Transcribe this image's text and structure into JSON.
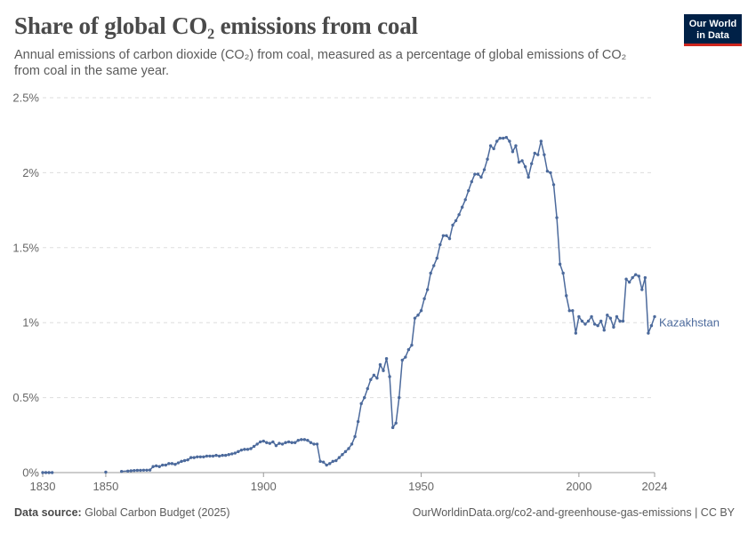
{
  "header": {
    "title": "Share of global CO₂ emissions from coal",
    "subtitle": "Annual emissions of carbon dioxide (CO₂) from coal, measured as a percentage of global emissions of CO₂ from coal in the same year."
  },
  "logo": {
    "line1": "Our World",
    "line2": "in Data",
    "bg_color": "#002147",
    "accent_color": "#ce261e"
  },
  "footer": {
    "source_label": "Data source:",
    "source_value": "Global Carbon Budget (2025)",
    "url": "OurWorldinData.org/co2-and-greenhouse-gas-emissions | CC BY"
  },
  "chart_data": {
    "type": "line",
    "title": "Share of global CO₂ emissions from coal",
    "xlabel": "",
    "ylabel": "",
    "xlim": [
      1830,
      2024
    ],
    "ylim": [
      0,
      2.5
    ],
    "x_ticks": [
      1830,
      1850,
      1900,
      1950,
      2000,
      2024
    ],
    "y_ticks": [
      {
        "value": 0,
        "label": "0%"
      },
      {
        "value": 0.5,
        "label": "0.5%"
      },
      {
        "value": 1,
        "label": "1%"
      },
      {
        "value": 1.5,
        "label": "1.5%"
      },
      {
        "value": 2,
        "label": "2%"
      },
      {
        "value": 2.5,
        "label": "2.5%"
      }
    ],
    "grid": "horizontal dashed",
    "legend": "inline label at line end",
    "line_color": "#4c6a9c",
    "series": [
      {
        "name": "Kazakhstan",
        "points": [
          [
            1830,
            0.0
          ],
          [
            1831,
            0.0
          ],
          [
            1832,
            0.0
          ],
          [
            1833,
            0.0
          ],
          [
            1850,
            0.003
          ],
          [
            1855,
            0.008
          ],
          [
            1857,
            0.01
          ],
          [
            1858,
            0.012
          ],
          [
            1859,
            0.014
          ],
          [
            1860,
            0.015
          ],
          [
            1861,
            0.015
          ],
          [
            1862,
            0.016
          ],
          [
            1863,
            0.016
          ],
          [
            1864,
            0.017
          ],
          [
            1865,
            0.04
          ],
          [
            1866,
            0.045
          ],
          [
            1867,
            0.04
          ],
          [
            1868,
            0.05
          ],
          [
            1869,
            0.05
          ],
          [
            1870,
            0.06
          ],
          [
            1871,
            0.06
          ],
          [
            1872,
            0.055
          ],
          [
            1873,
            0.065
          ],
          [
            1874,
            0.075
          ],
          [
            1875,
            0.08
          ],
          [
            1876,
            0.085
          ],
          [
            1877,
            0.1
          ],
          [
            1878,
            0.1
          ],
          [
            1879,
            0.105
          ],
          [
            1880,
            0.105
          ],
          [
            1881,
            0.105
          ],
          [
            1882,
            0.11
          ],
          [
            1883,
            0.11
          ],
          [
            1884,
            0.11
          ],
          [
            1885,
            0.115
          ],
          [
            1886,
            0.11
          ],
          [
            1887,
            0.115
          ],
          [
            1888,
            0.115
          ],
          [
            1889,
            0.12
          ],
          [
            1890,
            0.125
          ],
          [
            1891,
            0.13
          ],
          [
            1892,
            0.14
          ],
          [
            1893,
            0.15
          ],
          [
            1894,
            0.155
          ],
          [
            1895,
            0.155
          ],
          [
            1896,
            0.16
          ],
          [
            1897,
            0.175
          ],
          [
            1898,
            0.19
          ],
          [
            1899,
            0.205
          ],
          [
            1900,
            0.21
          ],
          [
            1901,
            0.2
          ],
          [
            1902,
            0.195
          ],
          [
            1903,
            0.205
          ],
          [
            1904,
            0.18
          ],
          [
            1905,
            0.195
          ],
          [
            1906,
            0.19
          ],
          [
            1907,
            0.2
          ],
          [
            1908,
            0.205
          ],
          [
            1909,
            0.2
          ],
          [
            1910,
            0.2
          ],
          [
            1911,
            0.215
          ],
          [
            1912,
            0.22
          ],
          [
            1913,
            0.22
          ],
          [
            1914,
            0.215
          ],
          [
            1915,
            0.2
          ],
          [
            1916,
            0.19
          ],
          [
            1917,
            0.19
          ],
          [
            1918,
            0.075
          ],
          [
            1919,
            0.07
          ],
          [
            1920,
            0.05
          ],
          [
            1921,
            0.06
          ],
          [
            1922,
            0.075
          ],
          [
            1923,
            0.08
          ],
          [
            1924,
            0.1
          ],
          [
            1925,
            0.12
          ],
          [
            1926,
            0.14
          ],
          [
            1927,
            0.16
          ],
          [
            1928,
            0.19
          ],
          [
            1929,
            0.24
          ],
          [
            1930,
            0.34
          ],
          [
            1931,
            0.46
          ],
          [
            1932,
            0.5
          ],
          [
            1933,
            0.56
          ],
          [
            1934,
            0.62
          ],
          [
            1935,
            0.65
          ],
          [
            1936,
            0.63
          ],
          [
            1937,
            0.72
          ],
          [
            1938,
            0.68
          ],
          [
            1939,
            0.76
          ],
          [
            1940,
            0.64
          ],
          [
            1941,
            0.3
          ],
          [
            1942,
            0.33
          ],
          [
            1943,
            0.5
          ],
          [
            1944,
            0.75
          ],
          [
            1945,
            0.77
          ],
          [
            1946,
            0.82
          ],
          [
            1947,
            0.85
          ],
          [
            1948,
            1.03
          ],
          [
            1949,
            1.05
          ],
          [
            1950,
            1.08
          ],
          [
            1951,
            1.16
          ],
          [
            1952,
            1.22
          ],
          [
            1953,
            1.33
          ],
          [
            1954,
            1.38
          ],
          [
            1955,
            1.43
          ],
          [
            1956,
            1.52
          ],
          [
            1957,
            1.58
          ],
          [
            1958,
            1.58
          ],
          [
            1959,
            1.56
          ],
          [
            1960,
            1.65
          ],
          [
            1961,
            1.68
          ],
          [
            1962,
            1.72
          ],
          [
            1963,
            1.77
          ],
          [
            1964,
            1.82
          ],
          [
            1965,
            1.88
          ],
          [
            1966,
            1.94
          ],
          [
            1967,
            1.99
          ],
          [
            1968,
            1.99
          ],
          [
            1969,
            1.97
          ],
          [
            1970,
            2.02
          ],
          [
            1971,
            2.09
          ],
          [
            1972,
            2.18
          ],
          [
            1973,
            2.16
          ],
          [
            1974,
            2.21
          ],
          [
            1975,
            2.23
          ],
          [
            1976,
            2.23
          ],
          [
            1977,
            2.235
          ],
          [
            1978,
            2.21
          ],
          [
            1979,
            2.14
          ],
          [
            1980,
            2.18
          ],
          [
            1981,
            2.07
          ],
          [
            1982,
            2.08
          ],
          [
            1983,
            2.04
          ],
          [
            1984,
            1.97
          ],
          [
            1985,
            2.06
          ],
          [
            1986,
            2.13
          ],
          [
            1987,
            2.12
          ],
          [
            1988,
            2.21
          ],
          [
            1989,
            2.12
          ],
          [
            1990,
            2.01
          ],
          [
            1991,
            2.0
          ],
          [
            1992,
            1.92
          ],
          [
            1993,
            1.7
          ],
          [
            1994,
            1.39
          ],
          [
            1995,
            1.33
          ],
          [
            1996,
            1.18
          ],
          [
            1997,
            1.08
          ],
          [
            1998,
            1.08
          ],
          [
            1999,
            0.93
          ],
          [
            2000,
            1.04
          ],
          [
            2001,
            1.01
          ],
          [
            2002,
            0.99
          ],
          [
            2003,
            1.01
          ],
          [
            2004,
            1.04
          ],
          [
            2005,
            0.99
          ],
          [
            2006,
            0.98
          ],
          [
            2007,
            1.01
          ],
          [
            2008,
            0.95
          ],
          [
            2009,
            1.05
          ],
          [
            2010,
            1.03
          ],
          [
            2011,
            0.97
          ],
          [
            2012,
            1.04
          ],
          [
            2013,
            1.01
          ],
          [
            2014,
            1.01
          ],
          [
            2015,
            1.29
          ],
          [
            2016,
            1.27
          ],
          [
            2017,
            1.3
          ],
          [
            2018,
            1.32
          ],
          [
            2019,
            1.31
          ],
          [
            2020,
            1.22
          ],
          [
            2021,
            1.3
          ],
          [
            2022,
            0.93
          ],
          [
            2023,
            0.98
          ],
          [
            2024,
            1.04
          ]
        ]
      }
    ]
  }
}
